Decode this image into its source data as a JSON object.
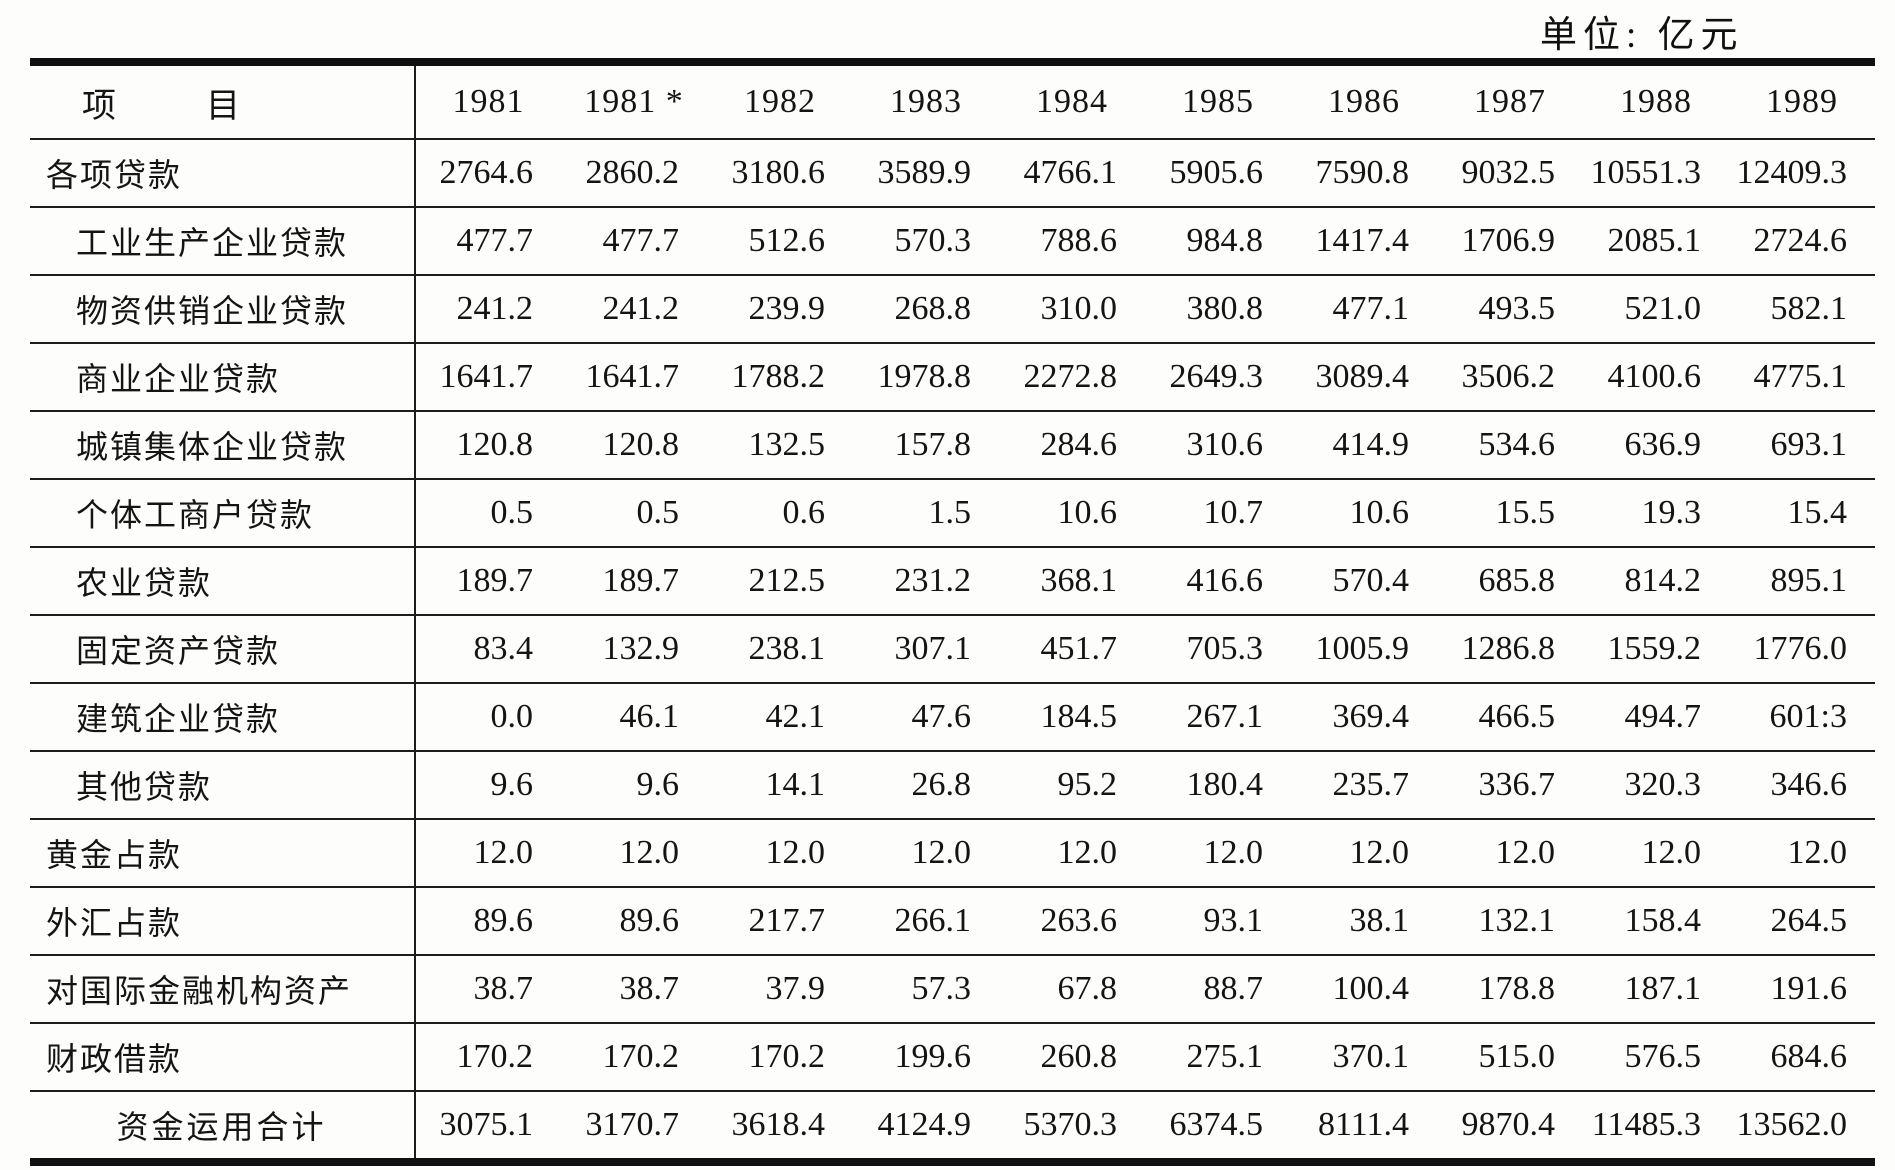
{
  "unit_label": "单位: 亿元",
  "table": {
    "item_header": "项目",
    "year_headers": [
      "1981",
      "1981 *",
      "1982",
      "1983",
      "1984",
      "1985",
      "1986",
      "1987",
      "1988",
      "1989"
    ],
    "rows": [
      {
        "label": "各项贷款",
        "indent": 0,
        "align": "left",
        "values": [
          "2764.6",
          "2860.2",
          "3180.6",
          "3589.9",
          "4766.1",
          "5905.6",
          "7590.8",
          "9032.5",
          "10551.3",
          "12409.3"
        ]
      },
      {
        "label": "工业生产企业贷款",
        "indent": 1,
        "align": "left",
        "values": [
          "477.7",
          "477.7",
          "512.6",
          "570.3",
          "788.6",
          "984.8",
          "1417.4",
          "1706.9",
          "2085.1",
          "2724.6"
        ]
      },
      {
        "label": "物资供销企业贷款",
        "indent": 1,
        "align": "left",
        "values": [
          "241.2",
          "241.2",
          "239.9",
          "268.8",
          "310.0",
          "380.8",
          "477.1",
          "493.5",
          "521.0",
          "582.1"
        ]
      },
      {
        "label": "商业企业贷款",
        "indent": 1,
        "align": "left",
        "values": [
          "1641.7",
          "1641.7",
          "1788.2",
          "1978.8",
          "2272.8",
          "2649.3",
          "3089.4",
          "3506.2",
          "4100.6",
          "4775.1"
        ]
      },
      {
        "label": "城镇集体企业贷款",
        "indent": 1,
        "align": "left",
        "values": [
          "120.8",
          "120.8",
          "132.5",
          "157.8",
          "284.6",
          "310.6",
          "414.9",
          "534.6",
          "636.9",
          "693.1"
        ]
      },
      {
        "label": "个体工商户贷款",
        "indent": 1,
        "align": "left",
        "values": [
          "0.5",
          "0.5",
          "0.6",
          "1.5",
          "10.6",
          "10.7",
          "10.6",
          "15.5",
          "19.3",
          "15.4"
        ]
      },
      {
        "label": "农业贷款",
        "indent": 1,
        "align": "left",
        "values": [
          "189.7",
          "189.7",
          "212.5",
          "231.2",
          "368.1",
          "416.6",
          "570.4",
          "685.8",
          "814.2",
          "895.1"
        ]
      },
      {
        "label": "固定资产贷款",
        "indent": 1,
        "align": "left",
        "values": [
          "83.4",
          "132.9",
          "238.1",
          "307.1",
          "451.7",
          "705.3",
          "1005.9",
          "1286.8",
          "1559.2",
          "1776.0"
        ]
      },
      {
        "label": "建筑企业贷款",
        "indent": 1,
        "align": "left",
        "values": [
          "0.0",
          "46.1",
          "42.1",
          "47.6",
          "184.5",
          "267.1",
          "369.4",
          "466.5",
          "494.7",
          "601:3"
        ]
      },
      {
        "label": "其他贷款",
        "indent": 1,
        "align": "left",
        "values": [
          "9.6",
          "9.6",
          "14.1",
          "26.8",
          "95.2",
          "180.4",
          "235.7",
          "336.7",
          "320.3",
          "346.6"
        ]
      },
      {
        "label": "黄金占款",
        "indent": 0,
        "align": "left",
        "values": [
          "12.0",
          "12.0",
          "12.0",
          "12.0",
          "12.0",
          "12.0",
          "12.0",
          "12.0",
          "12.0",
          "12.0"
        ]
      },
      {
        "label": "外汇占款",
        "indent": 0,
        "align": "left",
        "values": [
          "89.6",
          "89.6",
          "217.7",
          "266.1",
          "263.6",
          "93.1",
          "38.1",
          "132.1",
          "158.4",
          "264.5"
        ]
      },
      {
        "label": "对国际金融机构资产",
        "indent": 0,
        "align": "left",
        "values": [
          "38.7",
          "38.7",
          "37.9",
          "57.3",
          "67.8",
          "88.7",
          "100.4",
          "178.8",
          "187.1",
          "191.6"
        ]
      },
      {
        "label": "财政借款",
        "indent": 0,
        "align": "left",
        "values": [
          "170.2",
          "170.2",
          "170.2",
          "199.6",
          "260.8",
          "275.1",
          "370.1",
          "515.0",
          "576.5",
          "684.6"
        ]
      },
      {
        "label": "资金运用合计",
        "indent": 0,
        "align": "center",
        "values": [
          "3075.1",
          "3170.7",
          "3618.4",
          "4124.9",
          "5370.3",
          "6374.5",
          "8111.4",
          "9870.4",
          "11485.3",
          "13562.0"
        ]
      }
    ]
  }
}
